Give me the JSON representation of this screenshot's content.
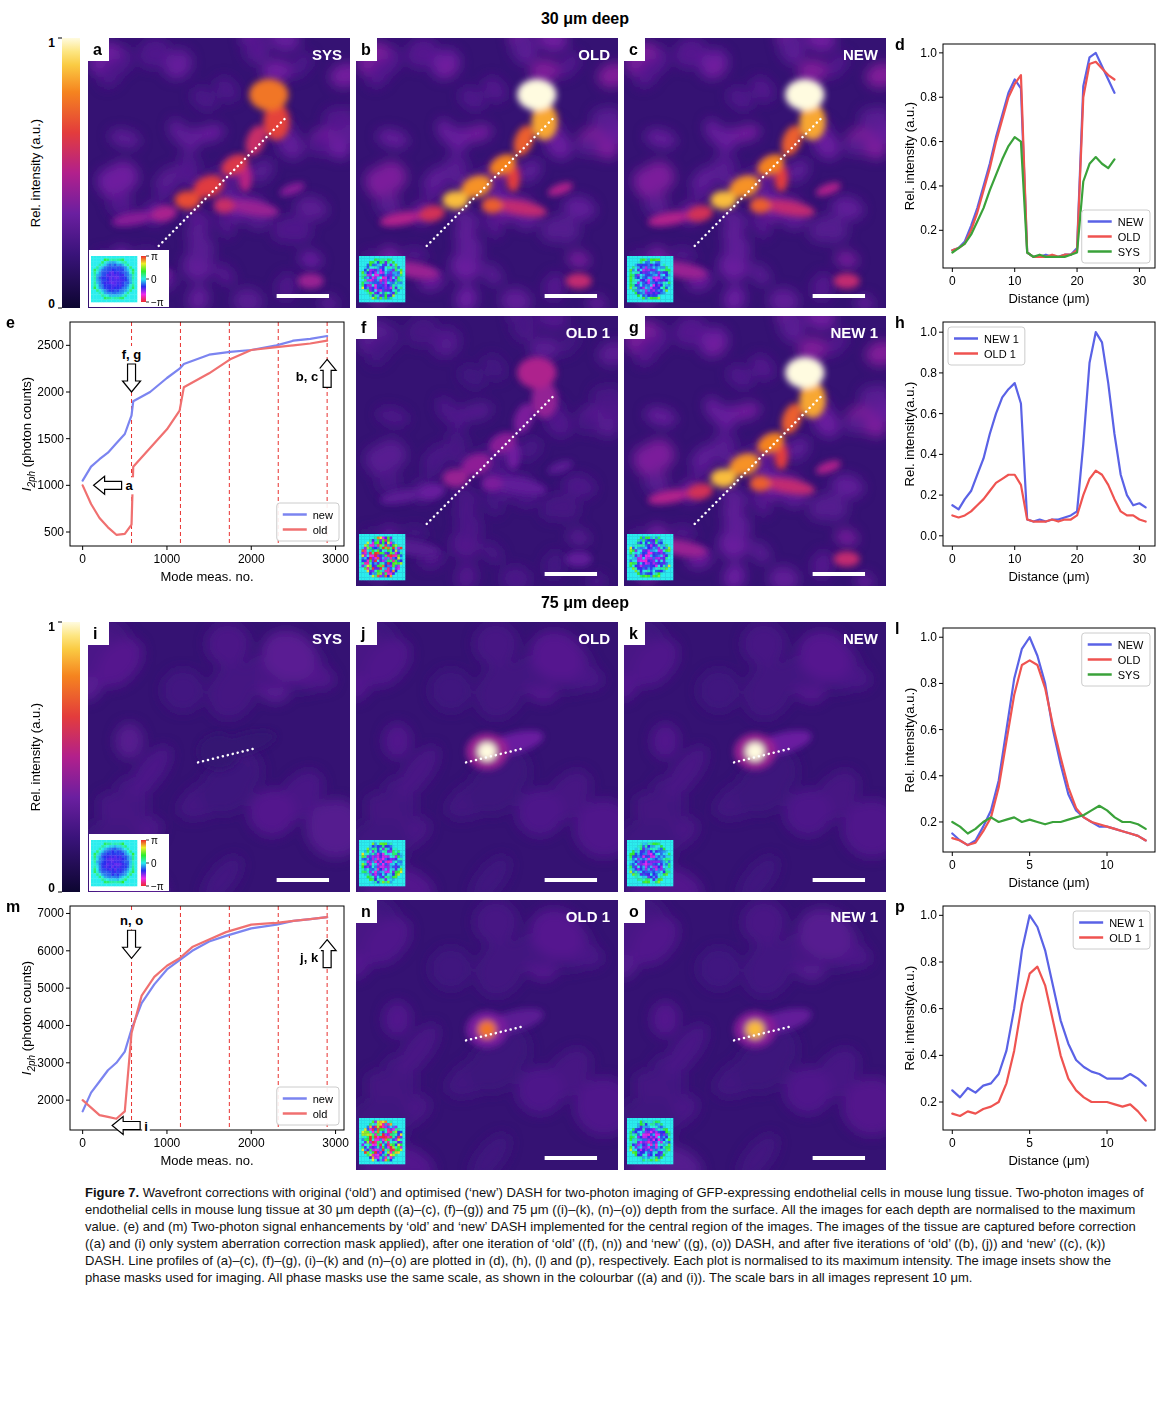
{
  "sections": [
    {
      "title": "30 μm deep",
      "images": [
        {
          "panel": "a",
          "tag": "SYS",
          "mask": "sys",
          "colorbar": {
            "lim": [
              -3.1416,
              3.1416
            ],
            "ticks": [
              {
                "value": 3.1416,
                "label": "π"
              },
              0,
              {
                "value": -3.1416,
                "label": "−π"
              }
            ]
          }
        },
        {
          "panel": "b",
          "tag": "OLD",
          "mask": "old"
        },
        {
          "panel": "c",
          "tag": "NEW",
          "mask": "new"
        },
        {
          "panel": "f",
          "tag": "OLD 1",
          "mask": "old1"
        },
        {
          "panel": "g",
          "tag": "NEW 1",
          "mask": "new1"
        }
      ]
    },
    {
      "title": "75 μm deep",
      "images": [
        {
          "panel": "i",
          "tag": "SYS",
          "mask": "sys",
          "colorbar": {
            "lim": [
              -3.1416,
              3.1416
            ],
            "ticks": [
              {
                "value": 3.1416,
                "label": "π"
              },
              0,
              {
                "value": -3.1416,
                "label": "−π"
              }
            ]
          }
        },
        {
          "panel": "j",
          "tag": "OLD",
          "mask": "old"
        },
        {
          "panel": "k",
          "tag": "NEW",
          "mask": "new"
        },
        {
          "panel": "n",
          "tag": "OLD 1",
          "mask": "old1"
        },
        {
          "panel": "o",
          "tag": "NEW 1",
          "mask": "new1"
        }
      ]
    }
  ],
  "colorbar": {
    "label": "Rel. intensity (a.u.)",
    "lim": [
      0,
      1
    ],
    "ticks": [
      0,
      1
    ]
  },
  "chart_data": [
    {
      "type": "line",
      "panel_label": "d",
      "x_label": "Distance (μm)",
      "y_label": "Rel. intensity (a.u.)",
      "x": [
        0,
        1,
        2,
        3,
        4,
        5,
        6,
        7,
        8,
        9,
        10,
        11,
        12,
        13,
        14,
        15,
        16,
        17,
        18,
        19,
        20,
        21,
        22,
        23,
        24,
        25,
        26
      ],
      "series": [
        {
          "name": "NEW",
          "color": "#5a62e6",
          "values": [
            0.11,
            0.12,
            0.15,
            0.22,
            0.3,
            0.4,
            0.5,
            0.62,
            0.72,
            0.82,
            0.88,
            0.84,
            0.1,
            0.08,
            0.08,
            0.09,
            0.08,
            0.08,
            0.09,
            0.09,
            0.12,
            0.85,
            0.98,
            1.0,
            0.94,
            0.88,
            0.82
          ]
        },
        {
          "name": "OLD",
          "color": "#ef5350",
          "values": [
            0.11,
            0.12,
            0.14,
            0.2,
            0.28,
            0.38,
            0.48,
            0.6,
            0.7,
            0.8,
            0.86,
            0.9,
            0.1,
            0.08,
            0.08,
            0.08,
            0.09,
            0.08,
            0.09,
            0.09,
            0.11,
            0.8,
            0.95,
            0.96,
            0.93,
            0.9,
            0.88
          ]
        },
        {
          "name": "SYS",
          "color": "#3aa23a",
          "values": [
            0.1,
            0.12,
            0.14,
            0.18,
            0.24,
            0.3,
            0.38,
            0.45,
            0.52,
            0.58,
            0.62,
            0.6,
            0.1,
            0.08,
            0.09,
            0.08,
            0.08,
            0.08,
            0.08,
            0.09,
            0.1,
            0.42,
            0.5,
            0.53,
            0.5,
            0.48,
            0.52
          ]
        }
      ],
      "xlim": [
        -1.5,
        32.5
      ],
      "ylim": [
        0.03,
        1.04
      ],
      "xticks": [
        0,
        10,
        20,
        30
      ],
      "yticks": [
        0.2,
        0.4,
        0.6,
        0.8,
        {
          "value": 1,
          "label": "1.0"
        }
      ],
      "legend": "lower right"
    },
    {
      "type": "line",
      "panel_label": "e",
      "x_label": "Mode meas. no.",
      "y_label": [
        "I",
        "2ph",
        " (photon counts)"
      ],
      "x": [
        0,
        100,
        200,
        300,
        400,
        500,
        580,
        600,
        800,
        1000,
        1150,
        1200,
        1500,
        1750,
        2000,
        2300,
        2500,
        2700,
        2900
      ],
      "series": [
        {
          "name": "new",
          "color": "#7b84f0",
          "values": [
            1050,
            1200,
            1280,
            1350,
            1450,
            1550,
            1750,
            1900,
            2000,
            2150,
            2250,
            2300,
            2400,
            2430,
            2450,
            2500,
            2550,
            2570,
            2600
          ]
        },
        {
          "name": "old",
          "color": "#f07070",
          "values": [
            1000,
            800,
            650,
            550,
            470,
            480,
            580,
            1200,
            1400,
            1600,
            1800,
            2050,
            2200,
            2350,
            2450,
            2480,
            2500,
            2520,
            2550
          ]
        }
      ],
      "vlines": [
        580,
        1160,
        1740,
        2320,
        2900
      ],
      "annotations": [
        {
          "text": "a",
          "x": 130,
          "y": 1000,
          "arrow": "left"
        },
        {
          "text": "f, g",
          "x": 580,
          "y": 2000,
          "arrow": "down"
        },
        {
          "text": "b, c",
          "x": 2900,
          "y": 2350,
          "arrow": "up"
        }
      ],
      "xlim": [
        -150,
        3100
      ],
      "ylim": [
        350,
        2750
      ],
      "xticks": [
        0,
        1000,
        2000,
        3000
      ],
      "yticks": [
        500,
        1000,
        1500,
        2000,
        2500
      ],
      "legend": "lower right"
    },
    {
      "type": "line",
      "panel_label": "h",
      "x_label": "Distance (μm)",
      "y_label": "Rel. intensity(a.u.)",
      "x": [
        0,
        1,
        2,
        3,
        4,
        5,
        6,
        7,
        8,
        9,
        10,
        11,
        12,
        13,
        14,
        15,
        16,
        17,
        18,
        19,
        20,
        21,
        22,
        23,
        24,
        25,
        26,
        27,
        28,
        29,
        30,
        31
      ],
      "series": [
        {
          "name": "NEW 1",
          "color": "#5a62e6",
          "values": [
            0.15,
            0.13,
            0.18,
            0.22,
            0.3,
            0.38,
            0.5,
            0.6,
            0.68,
            0.72,
            0.75,
            0.65,
            0.08,
            0.07,
            0.08,
            0.07,
            0.08,
            0.08,
            0.09,
            0.1,
            0.12,
            0.45,
            0.85,
            1.0,
            0.95,
            0.75,
            0.5,
            0.3,
            0.2,
            0.15,
            0.16,
            0.14
          ]
        },
        {
          "name": "OLD 1",
          "color": "#ef5350",
          "values": [
            0.1,
            0.09,
            0.1,
            0.12,
            0.15,
            0.18,
            0.22,
            0.26,
            0.28,
            0.3,
            0.3,
            0.25,
            0.08,
            0.07,
            0.07,
            0.07,
            0.08,
            0.07,
            0.08,
            0.08,
            0.1,
            0.2,
            0.28,
            0.32,
            0.3,
            0.25,
            0.18,
            0.12,
            0.1,
            0.1,
            0.08,
            0.07
          ]
        }
      ],
      "xlim": [
        -1.5,
        32.5
      ],
      "ylim": [
        -0.05,
        1.05
      ],
      "xticks": [
        0,
        10,
        20,
        30
      ],
      "yticks": [
        {
          "value": 0,
          "label": "0.0"
        },
        0.2,
        0.4,
        0.6,
        0.8,
        {
          "value": 1,
          "label": "1.0"
        }
      ],
      "legend": "upper left"
    },
    {
      "type": "line",
      "panel_label": "l",
      "x_label": "Distance (μm)",
      "y_label": "Rel. intensity(a.u.)",
      "x": [
        0,
        0.5,
        1,
        1.5,
        2,
        2.5,
        3,
        3.5,
        4,
        4.5,
        5,
        5.5,
        6,
        6.5,
        7,
        7.5,
        8,
        8.5,
        9,
        9.5,
        10,
        10.5,
        11,
        11.5,
        12,
        12.5
      ],
      "series": [
        {
          "name": "NEW",
          "color": "#5a62e6",
          "values": [
            0.15,
            0.12,
            0.1,
            0.12,
            0.18,
            0.25,
            0.38,
            0.6,
            0.82,
            0.95,
            1.0,
            0.92,
            0.8,
            0.6,
            0.45,
            0.32,
            0.25,
            0.22,
            0.2,
            0.18,
            0.18,
            0.17,
            0.16,
            0.15,
            0.14,
            0.12
          ]
        },
        {
          "name": "OLD",
          "color": "#ef5350",
          "values": [
            0.13,
            0.12,
            0.1,
            0.11,
            0.16,
            0.22,
            0.35,
            0.55,
            0.75,
            0.88,
            0.9,
            0.88,
            0.78,
            0.62,
            0.48,
            0.35,
            0.26,
            0.22,
            0.2,
            0.19,
            0.18,
            0.17,
            0.16,
            0.15,
            0.14,
            0.12
          ]
        },
        {
          "name": "SYS",
          "color": "#3aa23a",
          "values": [
            0.2,
            0.18,
            0.15,
            0.17,
            0.2,
            0.22,
            0.2,
            0.21,
            0.22,
            0.2,
            0.21,
            0.2,
            0.19,
            0.2,
            0.2,
            0.21,
            0.22,
            0.23,
            0.25,
            0.27,
            0.25,
            0.22,
            0.2,
            0.2,
            0.19,
            0.17
          ]
        }
      ],
      "xlim": [
        -0.6,
        13.1
      ],
      "ylim": [
        0.07,
        1.04
      ],
      "xticks": [
        0,
        5,
        10
      ],
      "yticks": [
        0.2,
        0.4,
        0.6,
        0.8,
        {
          "value": 1,
          "label": "1.0"
        }
      ],
      "legend": "upper right"
    },
    {
      "type": "line",
      "panel_label": "m",
      "x_label": "Mode meas. no.",
      "y_label": [
        "I",
        "2ph",
        " (photon counts)"
      ],
      "x": [
        0,
        100,
        200,
        300,
        400,
        500,
        580,
        700,
        850,
        1000,
        1150,
        1300,
        1500,
        1700,
        2000,
        2300,
        2500,
        2700,
        2900
      ],
      "series": [
        {
          "name": "new",
          "color": "#7b84f0",
          "values": [
            1700,
            2200,
            2500,
            2800,
            3000,
            3300,
            3900,
            4600,
            5100,
            5500,
            5750,
            6000,
            6250,
            6400,
            6600,
            6700,
            6800,
            6850,
            6900
          ]
        },
        {
          "name": "old",
          "color": "#f07070",
          "values": [
            2000,
            1800,
            1600,
            1550,
            1500,
            1700,
            3800,
            4800,
            5300,
            5600,
            5800,
            6100,
            6300,
            6500,
            6700,
            6750,
            6800,
            6850,
            6900
          ]
        }
      ],
      "vlines": [
        580,
        1160,
        1740,
        2320,
        2900
      ],
      "annotations": [
        {
          "text": "i",
          "x": 350,
          "y": 1320,
          "arrow": "left"
        },
        {
          "text": "n, o",
          "x": 580,
          "y": 5800,
          "arrow": "down"
        },
        {
          "text": "j, k",
          "x": 2900,
          "y": 6300,
          "arrow": "up"
        }
      ],
      "xlim": [
        -150,
        3100
      ],
      "ylim": [
        1200,
        7200
      ],
      "xticks": [
        0,
        1000,
        2000,
        3000
      ],
      "yticks": [
        2000,
        3000,
        4000,
        5000,
        6000,
        7000
      ],
      "legend": "lower right"
    },
    {
      "type": "line",
      "panel_label": "p",
      "x_label": "Distance (μm)",
      "y_label": "Rel. intensity(a.u.)",
      "x": [
        0,
        0.5,
        1,
        1.5,
        2,
        2.5,
        3,
        3.5,
        4,
        4.5,
        5,
        5.5,
        6,
        6.5,
        7,
        7.5,
        8,
        8.5,
        9,
        9.5,
        10,
        10.5,
        11,
        11.5,
        12,
        12.5
      ],
      "series": [
        {
          "name": "NEW 1",
          "color": "#5a62e6",
          "values": [
            0.25,
            0.22,
            0.26,
            0.24,
            0.27,
            0.28,
            0.32,
            0.42,
            0.6,
            0.85,
            1.0,
            0.95,
            0.85,
            0.7,
            0.55,
            0.45,
            0.38,
            0.35,
            0.33,
            0.32,
            0.3,
            0.3,
            0.3,
            0.32,
            0.3,
            0.27
          ]
        },
        {
          "name": "OLD 1",
          "color": "#ef5350",
          "values": [
            0.15,
            0.14,
            0.16,
            0.15,
            0.17,
            0.18,
            0.2,
            0.28,
            0.42,
            0.62,
            0.75,
            0.78,
            0.7,
            0.55,
            0.4,
            0.3,
            0.25,
            0.22,
            0.2,
            0.2,
            0.2,
            0.19,
            0.18,
            0.19,
            0.16,
            0.12
          ]
        }
      ],
      "xlim": [
        -0.6,
        13.1
      ],
      "ylim": [
        0.08,
        1.04
      ],
      "xticks": [
        0,
        5,
        10
      ],
      "yticks": [
        0.2,
        0.4,
        0.6,
        0.8,
        {
          "value": 1,
          "label": "1.0"
        }
      ],
      "legend": "upper right"
    }
  ],
  "caption": {
    "label": "Figure 7.",
    "text": "Wavefront corrections with original (‘old’) and optimised (‘new’) DASH for two-photon imaging of GFP-expressing endothelial cells in mouse lung tissue. Two-photon images of endothelial cells in mouse lung tissue at 30 μm depth ((a)–(c), (f)–(g)) and 75 μm ((i)–(k), (n)–(o)) depth from the surface. All the images for each depth are normalised to the maximum value. (e) and (m) Two-photon signal enhancements by ‘old’ and ‘new’ DASH implemented for the central region of the images. The images of the tissue are captured before correction ((a) and (i) only system aberration correction mask applied), after one iteration of ‘old’ ((f), (n)) and ‘new’ ((g), (o)) DASH, and after five iterations of ‘old’ ((b), (j)) and ‘new’ ((c), (k)) DASH. Line profiles of (a)–(c), (f)–(g), (i)–(k) and (n)–(o) are plotted in (d), (h), (l) and (p), respectively. Each plot is normalised to its maximum intensity. The image insets show the phase masks used for imaging. All phase masks use the same scale, as shown in the colourbar ((a) and (i)). The scale bars in all images represent 10 μm."
  }
}
